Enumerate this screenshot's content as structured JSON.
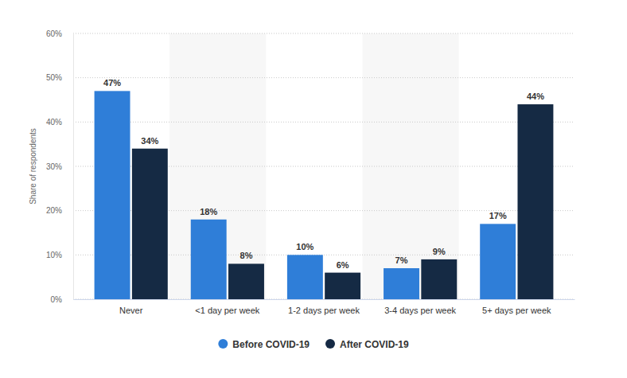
{
  "chart_data": {
    "type": "bar",
    "y_label": "Share of respondents",
    "categories": [
      "Never",
      "<1 day per week",
      "1-2 days per week",
      "3-4 days per week",
      "5+ days per week"
    ],
    "series": [
      {
        "name": "Before COVID-19",
        "color": "#2f7ed8",
        "values": [
          47,
          18,
          10,
          7,
          17
        ],
        "value_labels": [
          "47%",
          "18%",
          "10%",
          "7%",
          "17%"
        ]
      },
      {
        "name": "After COVID-19",
        "color": "#152a44",
        "values": [
          34,
          8,
          6,
          9,
          44
        ],
        "value_labels": [
          "34%",
          "8%",
          "6%",
          "9%",
          "44%"
        ]
      }
    ],
    "ylim": [
      0,
      60
    ],
    "yticks": [
      {
        "value": 0,
        "label": "0%"
      },
      {
        "value": 10,
        "label": "10%"
      },
      {
        "value": 20,
        "label": "20%"
      },
      {
        "value": 30,
        "label": "30%"
      },
      {
        "value": 40,
        "label": "40%"
      },
      {
        "value": 50,
        "label": "50%"
      },
      {
        "value": 60,
        "label": "60%"
      }
    ],
    "grid": true,
    "legend": "bottom",
    "data_labels": true
  }
}
